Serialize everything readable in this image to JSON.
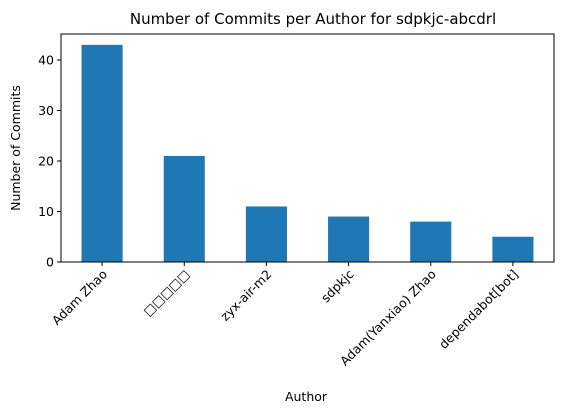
{
  "chart_data": {
    "type": "bar",
    "title": "Number of Commits per Author for sdpkjc-abcdrl",
    "xlabel": "Author",
    "ylabel": "Number of Commits",
    "categories": [
      "Adam Zhao",
      "□□□□□",
      "zyx-air-m2",
      "sdpkjc",
      "Adam(Yanxiao) Zhao",
      "dependabot[bot]"
    ],
    "values": [
      43,
      21,
      11,
      9,
      8,
      5
    ],
    "ylim": [
      0,
      45.15
    ],
    "yticks": [
      0,
      10,
      20,
      30,
      40
    ],
    "grid": false,
    "legend": "none",
    "bar_color": "#1f77b4"
  }
}
